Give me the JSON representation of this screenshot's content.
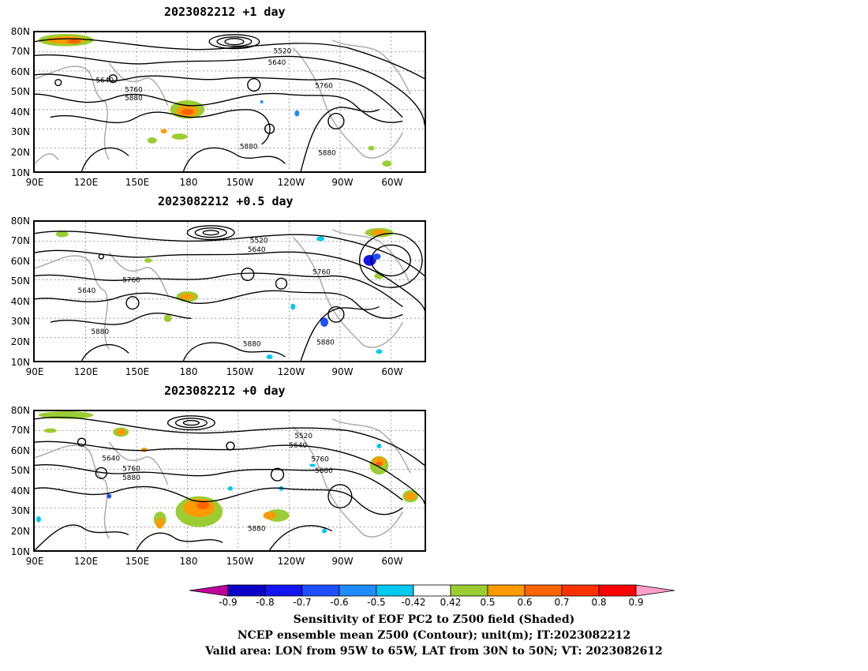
{
  "panels": [
    {
      "title": "2023082212  +1 day",
      "labels": [
        "5520",
        "5640",
        "5640",
        "5760",
        "5760",
        "5880",
        "5880",
        "5880"
      ]
    },
    {
      "title": "2023082212  +0.5 day",
      "labels": [
        "5520",
        "5640",
        "5640",
        "5760",
        "5760",
        "5880",
        "5880",
        "5880"
      ]
    },
    {
      "title": "2023082212  +0 day",
      "labels": [
        "5520",
        "5640",
        "5640",
        "5760",
        "5760",
        "5880",
        "5880",
        "5880",
        "5880"
      ]
    }
  ],
  "axes": {
    "lat_labels": [
      "80N",
      "70N",
      "60N",
      "50N",
      "40N",
      "30N",
      "20N",
      "10N"
    ],
    "lon_labels": [
      "90E",
      "120E",
      "150E",
      "180",
      "150W",
      "120W",
      "90W",
      "60W"
    ]
  },
  "colorbar": {
    "ticks": [
      "-0.9",
      "-0.8",
      "-0.7",
      "-0.6",
      "-0.5",
      "-0.42",
      "0.42",
      "0.5",
      "0.6",
      "0.7",
      "0.8",
      "0.9"
    ],
    "colors": [
      "#c0009a",
      "#0a00c8",
      "#1414f0",
      "#1e50ff",
      "#1e8cff",
      "#00c8f0",
      "#ffffff",
      "#9bcd32",
      "#ff9b00",
      "#ff6400",
      "#ff3200",
      "#ff0000",
      "#ffa0c8"
    ]
  },
  "captions": [
    "Sensitivity of EOF PC2 to Z500 field (Shaded)",
    "NCEP ensemble mean Z500 (Contour); unit(m); IT:2023082212",
    "Valid area: LON from 95W to 65W, LAT from 30N to 50N; VT: 2023082612"
  ]
}
